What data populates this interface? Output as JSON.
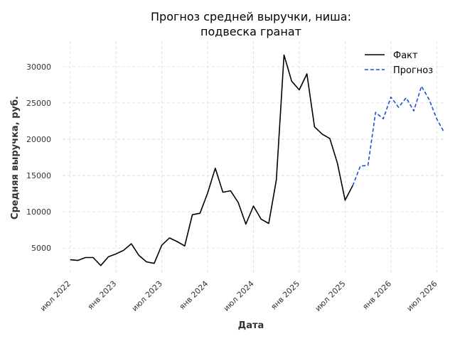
{
  "chart_data": {
    "type": "line",
    "title": [
      "Прогноз средней выручки, ниша:",
      "подвеска гранат"
    ],
    "xlabel": "Дата",
    "ylabel": "Средняя выручка, руб.",
    "x_start": "2022-06",
    "x_end": "2026-08",
    "ylim": [
      1500,
      33500
    ],
    "yticks": [
      5000,
      10000,
      15000,
      20000,
      25000,
      30000
    ],
    "xticks": [
      {
        "date": "2022-07",
        "label": "июл 2022"
      },
      {
        "date": "2023-01",
        "label": "янв 2023"
      },
      {
        "date": "2023-07",
        "label": "июл 2023"
      },
      {
        "date": "2024-01",
        "label": "янв 2024"
      },
      {
        "date": "2024-07",
        "label": "июл 2024"
      },
      {
        "date": "2025-01",
        "label": "янв 2025"
      },
      {
        "date": "2025-07",
        "label": "июл 2025"
      },
      {
        "date": "2026-01",
        "label": "янв 2026"
      },
      {
        "date": "2026-07",
        "label": "июл 2026"
      }
    ],
    "grid": true,
    "legend_position": "top-right",
    "series": [
      {
        "name": "Факт",
        "color": "#000000",
        "style": "solid",
        "points": [
          [
            "2022-07",
            3400
          ],
          [
            "2022-08",
            3300
          ],
          [
            "2022-09",
            3700
          ],
          [
            "2022-10",
            3700
          ],
          [
            "2022-11",
            2600
          ],
          [
            "2022-12",
            3800
          ],
          [
            "2023-01",
            4200
          ],
          [
            "2023-02",
            4700
          ],
          [
            "2023-03",
            5600
          ],
          [
            "2023-04",
            4000
          ],
          [
            "2023-05",
            3100
          ],
          [
            "2023-06",
            2900
          ],
          [
            "2023-07",
            5400
          ],
          [
            "2023-08",
            6400
          ],
          [
            "2023-09",
            5900
          ],
          [
            "2023-10",
            5300
          ],
          [
            "2023-11",
            9600
          ],
          [
            "2023-12",
            9800
          ],
          [
            "2024-01",
            12600
          ],
          [
            "2024-02",
            16000
          ],
          [
            "2024-03",
            12700
          ],
          [
            "2024-04",
            12900
          ],
          [
            "2024-05",
            11300
          ],
          [
            "2024-06",
            8300
          ],
          [
            "2024-07",
            10800
          ],
          [
            "2024-08",
            9000
          ],
          [
            "2024-09",
            8400
          ],
          [
            "2024-10",
            14400
          ],
          [
            "2024-11",
            31600
          ],
          [
            "2024-12",
            28000
          ],
          [
            "2025-01",
            26800
          ],
          [
            "2025-02",
            29000
          ],
          [
            "2025-03",
            21700
          ],
          [
            "2025-04",
            20700
          ],
          [
            "2025-05",
            20100
          ],
          [
            "2025-06",
            16700
          ],
          [
            "2025-07",
            11600
          ],
          [
            "2025-08",
            13600
          ]
        ]
      },
      {
        "name": "Прогноз",
        "color": "#1f4fd8",
        "style": "dashed",
        "points": [
          [
            "2025-08",
            13600
          ],
          [
            "2025-09",
            16300
          ],
          [
            "2025-10",
            16400
          ],
          [
            "2025-11",
            23700
          ],
          [
            "2025-12",
            22800
          ],
          [
            "2026-01",
            25800
          ],
          [
            "2026-02",
            24400
          ],
          [
            "2026-03",
            25700
          ],
          [
            "2026-04",
            23900
          ],
          [
            "2026-05",
            27300
          ],
          [
            "2026-06",
            25500
          ],
          [
            "2026-07",
            22800
          ],
          [
            "2026-08",
            20900
          ]
        ]
      }
    ]
  }
}
